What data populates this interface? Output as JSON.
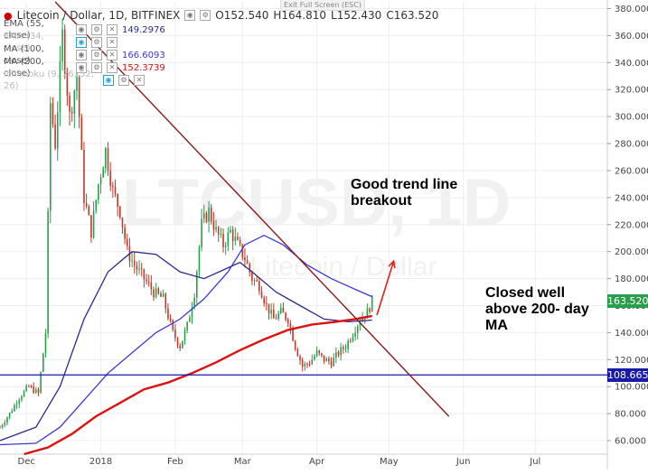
{
  "fullscreen_hint": "Exit Full Screen (ESC)",
  "header": {
    "symbol": "Litecoin / Dollar, 1D, BITFINEX",
    "ohlc": [
      {
        "key": "O",
        "value": "152.540"
      },
      {
        "key": "H",
        "value": "164.810"
      },
      {
        "key": "L",
        "value": "152.430"
      },
      {
        "key": "C",
        "value": "163.520"
      }
    ]
  },
  "indicators": [
    {
      "label": "EMA (55, close)",
      "value": "149.2976",
      "color": "#2b2b8f"
    },
    {
      "label": "EMA (34, close)",
      "value": "",
      "color": "#bbbbbb"
    },
    {
      "label": "MA (100, close)",
      "value": "166.6093",
      "color": "#3a3ad6"
    },
    {
      "label": "MA (200, close)",
      "value": "152.3739",
      "color": "#e01010"
    },
    {
      "label": "Ichimoku (9, 26, 52, 26)",
      "value": "",
      "color": "#bbbbbb"
    }
  ],
  "annotations": {
    "trend_breakout": "Good trend line breakout",
    "closed_above": "Closed well above 200- day MA"
  },
  "watermark": {
    "main": "LTCUSD, 1D",
    "sub": "Litecoin / Dollar"
  },
  "price_labels": {
    "last": "163.520",
    "support": "108.665"
  },
  "chart_data": {
    "type": "candlestick",
    "ylim": [
      50,
      385
    ],
    "y_ticks": [
      60,
      80,
      100,
      120,
      140,
      160,
      180,
      200,
      220,
      240,
      260,
      280,
      300,
      320,
      340,
      360,
      380
    ],
    "y_tick_labels": [
      "60.000",
      "80.000",
      "100.000",
      "120.000",
      "140.000",
      "160.000",
      "180.000",
      "200.000",
      "220.000",
      "240.000",
      "260.000",
      "280.000",
      "300.000",
      "320.000",
      "340.000",
      "360.000",
      "380.000"
    ],
    "x_labels": [
      {
        "day": 11,
        "label": "Dec"
      },
      {
        "day": 42,
        "label": "2018"
      },
      {
        "day": 73,
        "label": "Feb"
      },
      {
        "day": 101,
        "label": "Mar"
      },
      {
        "day": 132,
        "label": "Apr"
      },
      {
        "day": 162,
        "label": "May"
      },
      {
        "day": 193,
        "label": "Jun"
      },
      {
        "day": 223,
        "label": "Jul"
      }
    ],
    "x_range_days": [
      0,
      253
    ],
    "grid": true,
    "close_keypoints": [
      [
        0,
        70
      ],
      [
        4,
        80
      ],
      [
        8,
        92
      ],
      [
        12,
        100
      ],
      [
        16,
        95
      ],
      [
        19,
        140
      ],
      [
        21,
        310
      ],
      [
        23,
        280
      ],
      [
        26,
        360
      ],
      [
        29,
        300
      ],
      [
        32,
        330
      ],
      [
        35,
        240
      ],
      [
        38,
        215
      ],
      [
        41,
        250
      ],
      [
        44,
        275
      ],
      [
        47,
        245
      ],
      [
        50,
        230
      ],
      [
        53,
        200
      ],
      [
        56,
        190
      ],
      [
        60,
        180
      ],
      [
        64,
        170
      ],
      [
        68,
        165
      ],
      [
        72,
        140
      ],
      [
        75,
        130
      ],
      [
        78,
        145
      ],
      [
        81,
        170
      ],
      [
        84,
        220
      ],
      [
        87,
        230
      ],
      [
        90,
        215
      ],
      [
        93,
        205
      ],
      [
        96,
        215
      ],
      [
        99,
        205
      ],
      [
        102,
        195
      ],
      [
        105,
        180
      ],
      [
        108,
        175
      ],
      [
        111,
        160
      ],
      [
        114,
        150
      ],
      [
        117,
        155
      ],
      [
        120,
        150
      ],
      [
        123,
        130
      ],
      [
        126,
        115
      ],
      [
        129,
        118
      ],
      [
        132,
        125
      ],
      [
        135,
        120
      ],
      [
        138,
        118
      ],
      [
        141,
        125
      ],
      [
        144,
        130
      ],
      [
        147,
        140
      ],
      [
        150,
        150
      ],
      [
        153,
        155
      ],
      [
        155,
        163.5
      ]
    ],
    "series": [
      {
        "name": "EMA (55, close)",
        "color": "#2b2b8f",
        "points": [
          [
            0,
            60
          ],
          [
            15,
            70
          ],
          [
            25,
            100
          ],
          [
            35,
            150
          ],
          [
            45,
            185
          ],
          [
            55,
            200
          ],
          [
            65,
            198
          ],
          [
            75,
            185
          ],
          [
            85,
            180
          ],
          [
            95,
            188
          ],
          [
            100,
            192
          ],
          [
            105,
            185
          ],
          [
            115,
            170
          ],
          [
            125,
            160
          ],
          [
            135,
            150
          ],
          [
            145,
            148
          ],
          [
            155,
            149.3
          ]
        ]
      },
      {
        "name": "MA (100, close)",
        "color": "#3a3ad6",
        "points": [
          [
            0,
            57
          ],
          [
            15,
            58
          ],
          [
            25,
            70
          ],
          [
            35,
            90
          ],
          [
            45,
            110
          ],
          [
            55,
            125
          ],
          [
            65,
            140
          ],
          [
            75,
            150
          ],
          [
            85,
            165
          ],
          [
            95,
            185
          ],
          [
            102,
            205
          ],
          [
            110,
            212
          ],
          [
            118,
            205
          ],
          [
            128,
            190
          ],
          [
            138,
            180
          ],
          [
            148,
            172
          ],
          [
            155,
            166.6
          ]
        ]
      },
      {
        "name": "MA (200, close)",
        "color": "#e01010",
        "points": [
          [
            10,
            50
          ],
          [
            20,
            55
          ],
          [
            30,
            65
          ],
          [
            40,
            78
          ],
          [
            50,
            88
          ],
          [
            60,
            98
          ],
          [
            70,
            103
          ],
          [
            80,
            110
          ],
          [
            90,
            118
          ],
          [
            100,
            127
          ],
          [
            110,
            135
          ],
          [
            120,
            142
          ],
          [
            130,
            146
          ],
          [
            140,
            148
          ],
          [
            148,
            150
          ],
          [
            155,
            152.4
          ]
        ]
      }
    ],
    "trend_line": {
      "color": "#8b1a1a",
      "points": [
        [
          23,
          385
        ],
        [
          187,
          78
        ]
      ]
    },
    "support_line": {
      "color": "#1a1aa8",
      "value": 108.665
    },
    "breakout_arrow": {
      "color": "#e0201a",
      "points": [
        [
          157,
          153
        ],
        [
          164,
          193
        ]
      ]
    }
  }
}
